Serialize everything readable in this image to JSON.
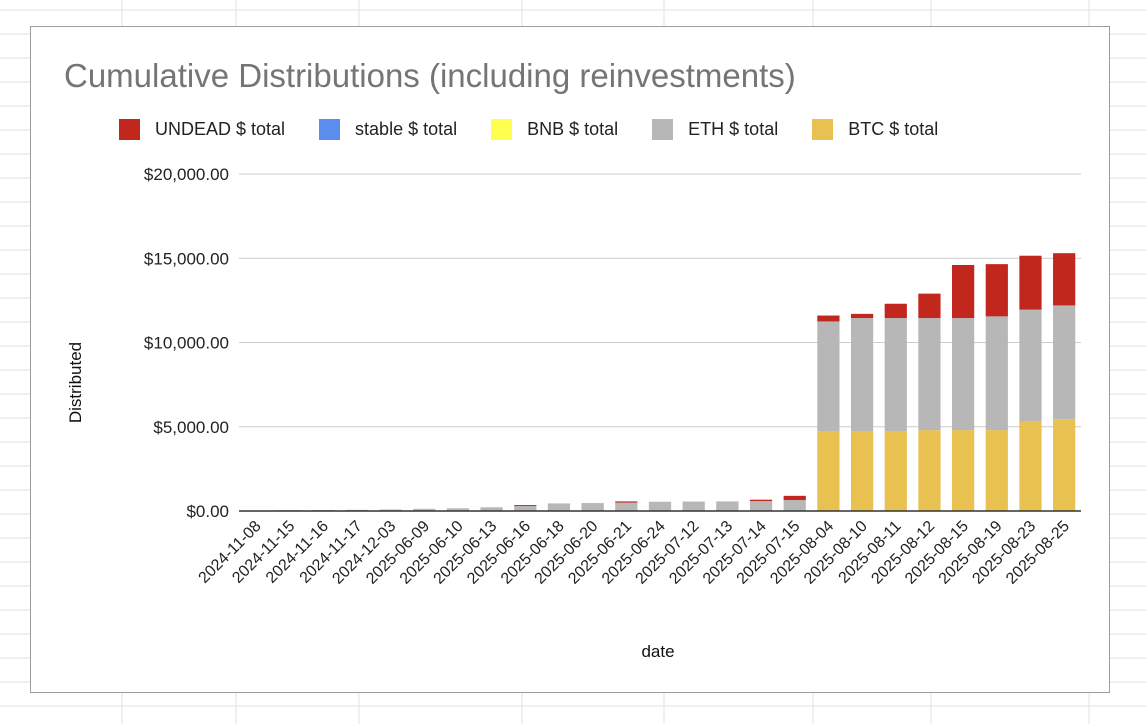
{
  "chart_data": {
    "type": "bar",
    "stacked": true,
    "title": "Cumulative Distributions (including reinvestments)",
    "xlabel": "date",
    "ylabel": "Distributed",
    "ylim": [
      0,
      20000
    ],
    "yticks": [
      0,
      5000,
      10000,
      15000,
      20000
    ],
    "ytick_labels": [
      "$0.00",
      "$5,000.00",
      "$10,000.00",
      "$15,000.00",
      "$20,000.00"
    ],
    "grid": true,
    "legend_position": "top",
    "categories": [
      "2024-11-08",
      "2024-11-15",
      "2024-11-16",
      "2024-11-17",
      "2024-12-03",
      "2025-06-09",
      "2025-06-10",
      "2025-06-13",
      "2025-06-16",
      "2025-06-18",
      "2025-06-20",
      "2025-06-21",
      "2025-06-24",
      "2025-07-12",
      "2025-07-13",
      "2025-07-14",
      "2025-07-15",
      "2025-08-04",
      "2025-08-10",
      "2025-08-11",
      "2025-08-12",
      "2025-08-15",
      "2025-08-19",
      "2025-08-23",
      "2025-08-25"
    ],
    "series": [
      {
        "name": "BTC $ total",
        "color": "#e8c151",
        "values": [
          0,
          0,
          0,
          0,
          0,
          0,
          0,
          0,
          0,
          0,
          0,
          0,
          0,
          0,
          0,
          0,
          0,
          4700,
          4700,
          4700,
          4800,
          4800,
          4800,
          5300,
          5450
        ]
      },
      {
        "name": "ETH $ total",
        "color": "#b7b7b7",
        "values": [
          30,
          50,
          60,
          70,
          90,
          130,
          160,
          220,
          290,
          450,
          470,
          500,
          550,
          560,
          570,
          590,
          650,
          6550,
          6750,
          6750,
          6650,
          6650,
          6750,
          6650,
          6750
        ]
      },
      {
        "name": "BNB $ total",
        "color": "#ffff4f",
        "values": [
          0,
          0,
          0,
          0,
          0,
          0,
          0,
          0,
          0,
          0,
          0,
          0,
          0,
          0,
          0,
          0,
          0,
          0,
          0,
          0,
          0,
          0,
          0,
          0,
          0
        ]
      },
      {
        "name": "stable $ total",
        "color": "#5b8def",
        "values": [
          0,
          0,
          0,
          0,
          0,
          0,
          0,
          0,
          0,
          0,
          0,
          0,
          0,
          0,
          0,
          0,
          0,
          0,
          0,
          0,
          0,
          0,
          0,
          0,
          0
        ]
      },
      {
        "name": "UNDEAD $ total",
        "color": "#c1271d",
        "values": [
          0,
          0,
          0,
          0,
          0,
          0,
          0,
          0,
          60,
          0,
          0,
          70,
          0,
          0,
          0,
          80,
          250,
          350,
          250,
          850,
          1450,
          3150,
          3100,
          3200,
          3100
        ]
      }
    ],
    "legend_order": [
      "UNDEAD $ total",
      "stable $ total",
      "BNB $ total",
      "ETH $ total",
      "BTC $ total"
    ]
  }
}
